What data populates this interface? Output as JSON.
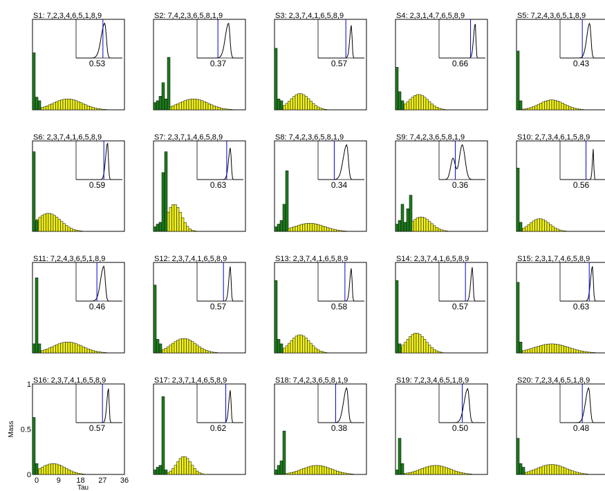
{
  "chart_data": {
    "type": "bar",
    "layout": "grid of 20 subplots (4 rows x 5 columns), each a histogram with an inset density plot",
    "xlabel": "Tau",
    "ylabel": "Mass",
    "x_ticks": [
      "0",
      "9",
      "18",
      "27",
      "36"
    ],
    "y_ticks": [
      "0",
      "0.5",
      "1"
    ],
    "xlim": [
      0,
      36
    ],
    "ylim": [
      0,
      1
    ],
    "colors": {
      "green": "#1e7a1e",
      "yellow": "#f0f01e",
      "inset_line": "#000000",
      "marker": "#0000cc"
    },
    "panels": [
      {
        "title": "S1: 7,2,3,4,6,5,1,8,9",
        "value": "0.53",
        "green": [
          0.63,
          0.14,
          0.1
        ],
        "ymean": 14,
        "yspread": 6,
        "ypeak": 0.12,
        "inset": [
          0.62,
          0.22,
          0.9,
          0.58
        ]
      },
      {
        "title": "S2: 7,4,2,3,6,5,8,1,9",
        "value": "0.37",
        "green": [
          0.08,
          0.1,
          0.15,
          0.3,
          0.12,
          0.58
        ],
        "ymean": 16,
        "yspread": 6,
        "ypeak": 0.12,
        "inset": [
          0.68,
          0.2,
          0.9,
          0.45
        ]
      },
      {
        "title": "S3: 2,3,7,4,1,6,5,8,9",
        "value": "0.57",
        "green": [
          0.68,
          0.12,
          0.1
        ],
        "ymean": 10,
        "yspread": 4,
        "ypeak": 0.18,
        "inset": [
          0.72,
          0.1,
          0.85,
          0.6
        ]
      },
      {
        "title": "S4: 2,3,1,4,7,6,5,8,9",
        "value": "0.66",
        "green": [
          0.47,
          0.2,
          0.1
        ],
        "ymean": 9,
        "yspread": 4,
        "ypeak": 0.17,
        "inset": [
          0.78,
          0.1,
          0.9,
          0.68
        ]
      },
      {
        "title": "S5: 7,2,4,3,6,5,1,8,9",
        "value": "0.43",
        "green": [
          0.65,
          0.1
        ],
        "ymean": 14,
        "yspread": 5,
        "ypeak": 0.11,
        "inset": [
          0.64,
          0.18,
          0.9,
          0.48
        ]
      },
      {
        "title": "S6: 2,3,7,4,1,6,5,8,9",
        "value": "0.59",
        "green": [
          0.88,
          0.12
        ],
        "ymean": 6,
        "yspread": 5,
        "ypeak": 0.2,
        "inset": [
          0.68,
          0.12,
          0.95,
          0.6
        ]
      },
      {
        "title": "S7: 2,3,7,1,4,6,5,8,9",
        "value": "0.63",
        "green": [
          0.05,
          0.08,
          0.1,
          0.65,
          0.88
        ],
        "ymean": 8,
        "yspread": 3,
        "ypeak": 0.3,
        "inset": [
          0.72,
          0.12,
          0.82,
          0.64
        ]
      },
      {
        "title": "S8: 7,4,2,3,6,5,8,1,9",
        "value": "0.34",
        "green": [
          0.05,
          0.08,
          0.12,
          0.3,
          0.67
        ],
        "ymean": 14,
        "yspread": 6,
        "ypeak": 0.09,
        "inset": [
          0.62,
          0.22,
          0.9,
          0.35
        ]
      },
      {
        "title": "S9: 7,4,2,3,6,5,8,1,9",
        "value": "0.36",
        "green": [
          0.08,
          0.12,
          0.3,
          0.1,
          0.25,
          0.4
        ],
        "ymean": 10,
        "yspread": 4,
        "ypeak": 0.16,
        "inset": [
          0.62,
          0.22,
          0.9,
          0.35
        ],
        "bimodal": true
      },
      {
        "title": "S10: 2,7,3,4,6,1,5,8,9",
        "value": "0.56",
        "green": [
          0.7,
          0.1
        ],
        "ymean": 9,
        "yspread": 4,
        "ypeak": 0.14,
        "inset": [
          0.72,
          0.06,
          0.8,
          0.56
        ]
      },
      {
        "title": "S11: 7,2,4,3,6,5,1,8,9",
        "value": "0.46",
        "green": [
          0.1,
          0.83,
          0.1
        ],
        "ymean": 14,
        "yspread": 6,
        "ypeak": 0.12,
        "inset": [
          0.6,
          0.2,
          0.9,
          0.45
        ]
      },
      {
        "title": "S12: 2,3,7,4,1,6,5,8,9",
        "value": "0.57",
        "green": [
          0.75,
          0.15,
          0.1
        ],
        "ymean": 12,
        "yspread": 5,
        "ypeak": 0.16,
        "inset": [
          0.72,
          0.1,
          0.9,
          0.57
        ]
      },
      {
        "title": "S13: 2,3,7,4,1,6,5,8,9",
        "value": "0.58",
        "green": [
          0.8,
          0.15,
          0.1
        ],
        "ymean": 10,
        "yspread": 4,
        "ypeak": 0.2,
        "inset": [
          0.72,
          0.1,
          0.85,
          0.58
        ]
      },
      {
        "title": "S14: 2,3,7,4,1,6,5,8,9",
        "value": "0.57",
        "green": [
          0.8,
          0.1
        ],
        "ymean": 8,
        "yspread": 4,
        "ypeak": 0.22,
        "inset": [
          0.72,
          0.1,
          0.88,
          0.57
        ]
      },
      {
        "title": "S15: 2,3,1,7,4,6,5,8,9",
        "value": "0.63",
        "green": [
          0.78,
          0.12
        ],
        "ymean": 14,
        "yspread": 7,
        "ypeak": 0.1,
        "inset": [
          0.7,
          0.12,
          0.9,
          0.63
        ]
      },
      {
        "title": "S16: 2,3,7,4,1,6,5,8,9",
        "value": "0.57",
        "green": [
          0.63,
          0.12
        ],
        "ymean": 8,
        "yspread": 5,
        "ypeak": 0.12,
        "inset": [
          0.7,
          0.1,
          0.88,
          0.57
        ]
      },
      {
        "title": "S17: 2,3,7,1,4,6,5,8,9",
        "value": "0.62",
        "green": [
          0.05,
          0.08,
          0.1,
          0.86,
          0.05
        ],
        "ymean": 12,
        "yspread": 3,
        "ypeak": 0.2,
        "inset": [
          0.72,
          0.1,
          0.84,
          0.62
        ]
      },
      {
        "title": "S18: 7,4,2,3,6,5,8,1,9",
        "value": "0.38",
        "green": [
          0.05,
          0.1,
          0.15,
          0.48
        ],
        "ymean": 17,
        "yspread": 6,
        "ypeak": 0.1,
        "inset": [
          0.62,
          0.2,
          0.9,
          0.38
        ]
      },
      {
        "title": "S19: 7,2,3,4,6,5,1,8,9",
        "value": "0.50",
        "green": [
          0.05,
          0.4,
          0.12
        ],
        "ymean": 16,
        "yspread": 6,
        "ypeak": 0.1,
        "inset": [
          0.62,
          0.22,
          0.88,
          0.5
        ]
      },
      {
        "title": "S20: 7,2,3,4,6,5,1,8,9",
        "value": "0.48",
        "green": [
          0.4,
          0.12,
          0.08
        ],
        "ymean": 14,
        "yspread": 6,
        "ypeak": 0.11,
        "inset": [
          0.62,
          0.2,
          0.9,
          0.48
        ]
      }
    ]
  }
}
